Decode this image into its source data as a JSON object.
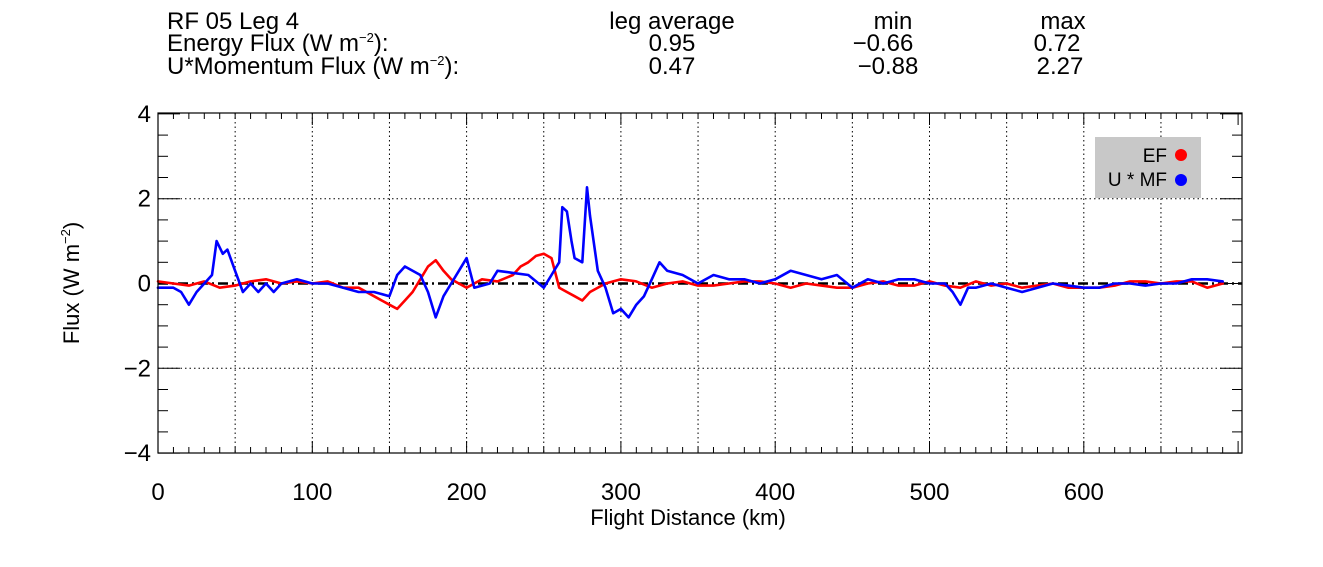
{
  "header": {
    "leg_label": "RF 05 Leg 4",
    "col_avg": "leg average",
    "col_min": "min",
    "col_max": "max",
    "rows": [
      {
        "label_main": "Energy Flux (W m",
        "label_sup": "−2",
        "label_tail": "):",
        "avg": "0.95",
        "min": "−0.66",
        "max": "0.72"
      },
      {
        "label_main": "U*Momentum Flux (W m",
        "label_sup": "−2",
        "label_tail": "):",
        "avg": "0.47",
        "min": "−0.88",
        "max": "2.27"
      }
    ]
  },
  "colors": {
    "ef": "#ff0000",
    "umf": "#0000ff",
    "legend_bg": "#c8c8c8",
    "zero_line": "#000000"
  },
  "chart_data": {
    "type": "line",
    "xlabel": "Flight Distance (km)",
    "ylabel_main": "Flux (W m",
    "ylabel_sup": "−2",
    "ylabel_tail": ")",
    "xlim": [
      0,
      700
    ],
    "ylim": [
      -4,
      4
    ],
    "xticks": [
      0,
      100,
      200,
      300,
      400,
      500,
      600
    ],
    "xtick_labels": [
      "0",
      "100",
      "200",
      "300",
      "400",
      "500",
      "600"
    ],
    "yticks": [
      -4,
      -2,
      0,
      2,
      4
    ],
    "ytick_labels": [
      "−4",
      "−2",
      "0",
      "2",
      "4"
    ],
    "grid": "dotted",
    "legend": {
      "position": "top-right",
      "entries": [
        "EF",
        "U * MF"
      ]
    },
    "series": [
      {
        "name": "EF",
        "x": [
          0,
          10,
          20,
          30,
          40,
          50,
          60,
          70,
          80,
          90,
          100,
          110,
          120,
          130,
          140,
          150,
          155,
          160,
          165,
          170,
          175,
          180,
          185,
          190,
          195,
          200,
          205,
          210,
          220,
          230,
          235,
          240,
          245,
          250,
          255,
          260,
          265,
          270,
          275,
          280,
          290,
          300,
          310,
          320,
          330,
          340,
          350,
          360,
          370,
          380,
          390,
          400,
          410,
          420,
          430,
          440,
          450,
          460,
          470,
          480,
          490,
          500,
          510,
          520,
          530,
          540,
          550,
          560,
          570,
          580,
          590,
          600,
          610,
          620,
          630,
          640,
          650,
          660,
          670,
          680,
          690
        ],
        "y": [
          0.05,
          0.0,
          -0.05,
          0.05,
          -0.1,
          -0.05,
          0.05,
          0.1,
          0.0,
          0.05,
          0.0,
          0.05,
          -0.1,
          -0.1,
          -0.3,
          -0.5,
          -0.6,
          -0.4,
          -0.2,
          0.1,
          0.4,
          0.55,
          0.3,
          0.1,
          0.0,
          -0.1,
          0.0,
          0.1,
          0.05,
          0.2,
          0.4,
          0.5,
          0.65,
          0.7,
          0.6,
          -0.1,
          -0.2,
          -0.3,
          -0.4,
          -0.2,
          0.0,
          0.1,
          0.05,
          -0.1,
          0.0,
          0.05,
          -0.05,
          -0.05,
          0.0,
          0.05,
          0.05,
          0.0,
          -0.1,
          0.0,
          -0.05,
          -0.1,
          -0.1,
          0.0,
          0.05,
          -0.05,
          -0.05,
          0.05,
          -0.05,
          -0.1,
          0.05,
          -0.05,
          0.0,
          -0.1,
          -0.05,
          0.0,
          -0.1,
          -0.1,
          -0.1,
          -0.05,
          0.05,
          0.05,
          0.0,
          0.05,
          0.05,
          -0.1,
          0.0
        ]
      },
      {
        "name": "U * MF",
        "x": [
          0,
          10,
          15,
          20,
          25,
          30,
          35,
          38,
          42,
          45,
          50,
          55,
          60,
          65,
          70,
          75,
          80,
          90,
          100,
          110,
          120,
          130,
          140,
          150,
          155,
          160,
          165,
          170,
          175,
          180,
          185,
          190,
          195,
          200,
          205,
          210,
          215,
          220,
          230,
          240,
          250,
          255,
          260,
          262,
          265,
          268,
          270,
          275,
          278,
          280,
          285,
          290,
          295,
          300,
          305,
          310,
          315,
          320,
          325,
          330,
          340,
          350,
          360,
          370,
          380,
          390,
          400,
          410,
          420,
          430,
          440,
          450,
          460,
          470,
          480,
          490,
          500,
          510,
          515,
          520,
          525,
          530,
          540,
          550,
          560,
          570,
          580,
          590,
          600,
          610,
          620,
          630,
          640,
          650,
          660,
          670,
          680,
          690
        ],
        "y": [
          -0.1,
          -0.1,
          -0.2,
          -0.5,
          -0.2,
          0.0,
          0.2,
          1.0,
          0.7,
          0.8,
          0.3,
          -0.2,
          0.0,
          -0.2,
          0.0,
          -0.2,
          0.0,
          0.1,
          0.0,
          0.0,
          -0.1,
          -0.2,
          -0.2,
          -0.3,
          0.2,
          0.4,
          0.3,
          0.2,
          -0.2,
          -0.8,
          -0.3,
          0.0,
          0.3,
          0.6,
          -0.1,
          -0.05,
          0.0,
          0.3,
          0.25,
          0.2,
          -0.1,
          0.2,
          0.5,
          1.8,
          1.7,
          1.0,
          0.6,
          0.5,
          2.27,
          1.6,
          0.3,
          -0.1,
          -0.7,
          -0.6,
          -0.8,
          -0.5,
          -0.3,
          0.1,
          0.5,
          0.3,
          0.2,
          0.0,
          0.2,
          0.1,
          0.1,
          0.0,
          0.1,
          0.3,
          0.2,
          0.1,
          0.2,
          -0.1,
          0.1,
          0.0,
          0.1,
          0.1,
          0.0,
          0.0,
          -0.2,
          -0.5,
          -0.1,
          -0.1,
          0.0,
          -0.1,
          -0.2,
          -0.1,
          0.0,
          -0.05,
          -0.1,
          -0.1,
          0.0,
          0.0,
          -0.05,
          0.0,
          0.0,
          0.1,
          0.1,
          0.05
        ]
      }
    ]
  }
}
